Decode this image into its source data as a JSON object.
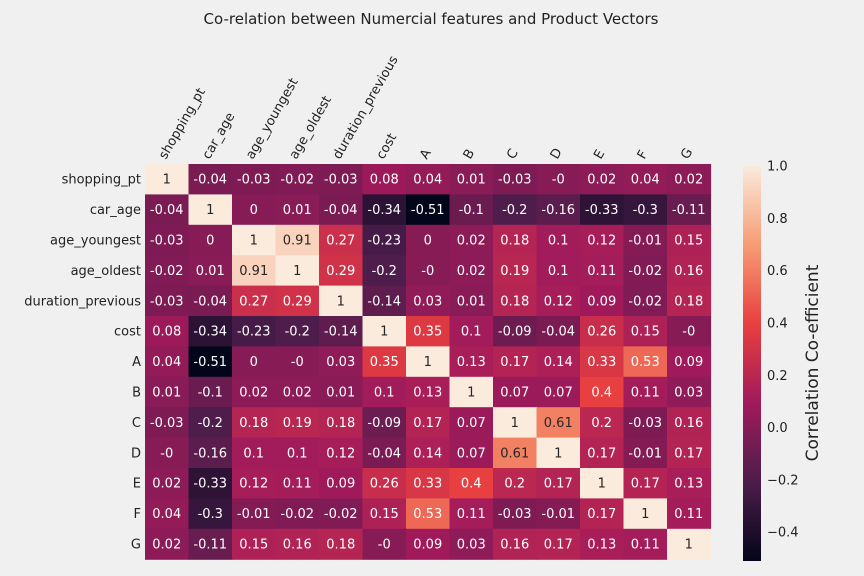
{
  "chart_data": {
    "type": "heatmap",
    "title": "Co-relation between Numercial features and Product Vectors",
    "xlabel": "",
    "ylabel": "",
    "row_labels": [
      "shopping_pt",
      "car_age",
      "age_youngest",
      "age_oldest",
      "duration_previous",
      "cost",
      "A",
      "B",
      "C",
      "D",
      "E",
      "F",
      "G"
    ],
    "col_labels": [
      "shopping_pt",
      "car_age",
      "age_youngest",
      "age_oldest",
      "duration_previous",
      "cost",
      "A",
      "B",
      "C",
      "D",
      "E",
      "F",
      "G"
    ],
    "values": [
      [
        1,
        -0.04,
        -0.03,
        -0.02,
        -0.03,
        0.08,
        0.04,
        0.01,
        -0.03,
        0,
        0.02,
        0.04,
        0.02
      ],
      [
        -0.04,
        1,
        0,
        0.01,
        -0.04,
        -0.34,
        -0.51,
        -0.1,
        -0.2,
        -0.16,
        -0.33,
        -0.3,
        -0.11
      ],
      [
        -0.03,
        0,
        1,
        0.91,
        0.27,
        -0.23,
        0,
        0.02,
        0.18,
        0.1,
        0.12,
        -0.01,
        0.15
      ],
      [
        -0.02,
        0.01,
        0.91,
        1,
        0.29,
        -0.2,
        0,
        0.02,
        0.19,
        0.1,
        0.11,
        -0.02,
        0.16
      ],
      [
        -0.03,
        -0.04,
        0.27,
        0.29,
        1,
        -0.14,
        0.03,
        0.01,
        0.18,
        0.12,
        0.09,
        -0.02,
        0.18
      ],
      [
        0.08,
        -0.34,
        -0.23,
        -0.2,
        -0.14,
        1,
        0.35,
        0.1,
        -0.09,
        -0.04,
        0.26,
        0.15,
        0
      ],
      [
        0.04,
        -0.51,
        0,
        0,
        0.03,
        0.35,
        1,
        0.13,
        0.17,
        0.14,
        0.33,
        0.53,
        0.09
      ],
      [
        0.01,
        -0.1,
        0.02,
        0.02,
        0.01,
        0.1,
        0.13,
        1,
        0.07,
        0.07,
        0.4,
        0.11,
        0.03
      ],
      [
        -0.03,
        -0.2,
        0.18,
        0.19,
        0.18,
        -0.09,
        0.17,
        0.07,
        1,
        0.61,
        0.2,
        -0.03,
        0.16
      ],
      [
        0,
        -0.16,
        0.1,
        0.1,
        0.12,
        -0.04,
        0.14,
        0.07,
        0.61,
        1,
        0.17,
        -0.01,
        0.17
      ],
      [
        0.02,
        -0.33,
        0.12,
        0.11,
        0.09,
        0.26,
        0.33,
        0.4,
        0.2,
        0.17,
        1,
        0.17,
        0.13
      ],
      [
        0.04,
        -0.3,
        -0.01,
        -0.02,
        -0.02,
        0.15,
        0.53,
        0.11,
        -0.03,
        -0.01,
        0.17,
        1,
        0.11
      ],
      [
        0.02,
        -0.11,
        0.15,
        0.16,
        0.18,
        0,
        0.09,
        0.03,
        0.16,
        0.17,
        0.13,
        0.11,
        1
      ]
    ],
    "colormap": [
      "#03051a",
      "#4c1d4b",
      "#a11a5b",
      "#e83f3f",
      "#f69c73",
      "#faebdd"
    ],
    "colorbar": {
      "label": "Correlation Co-efficient",
      "range": [
        -0.51,
        1
      ],
      "ticks": [
        "−0.4",
        "−0.2",
        "0.0",
        "0.2",
        "0.4",
        "0.6",
        "0.8",
        "1.0"
      ],
      "tick_values": [
        -0.4,
        -0.2,
        0,
        0.2,
        0.4,
        0.6,
        0.8,
        1.0
      ]
    },
    "background": "#f0f0f0",
    "grid": false
  }
}
